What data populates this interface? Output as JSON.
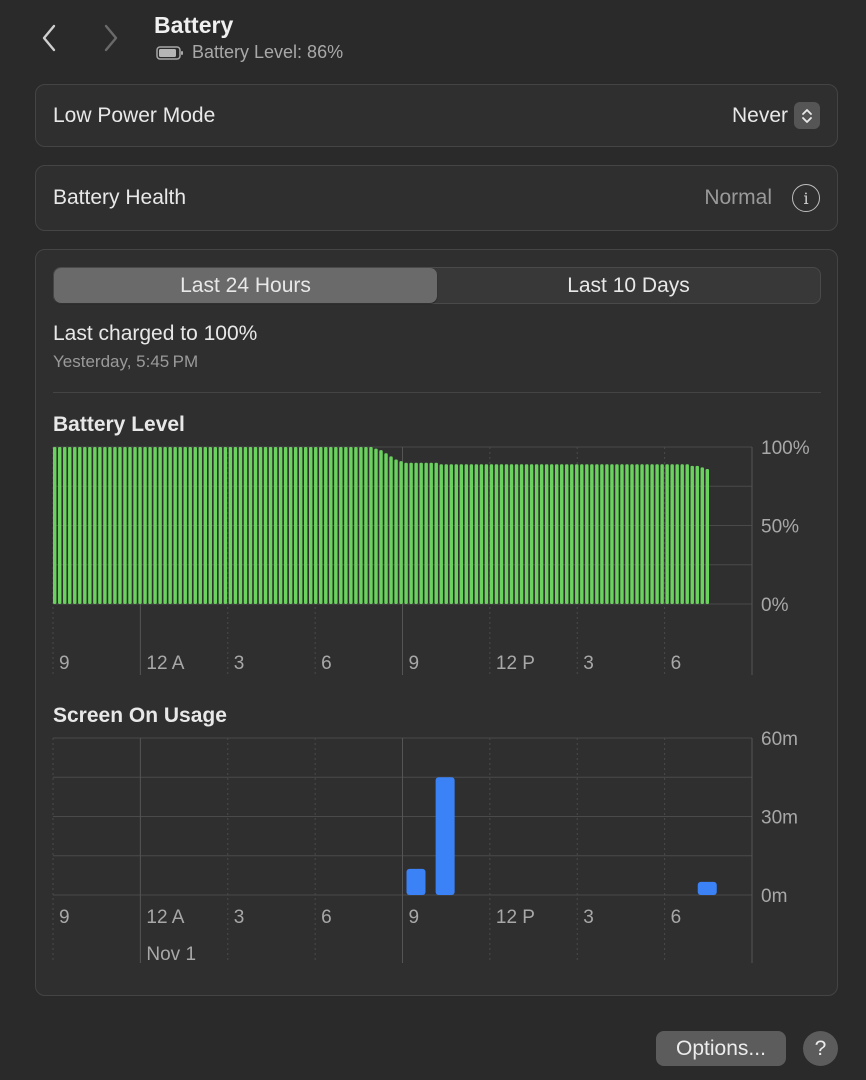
{
  "header": {
    "title": "Battery",
    "subtitle": "Battery Level: 86%",
    "back_icon": "chevron-left-icon",
    "forward_icon": "chevron-right-icon"
  },
  "low_power": {
    "label": "Low Power Mode",
    "value": "Never"
  },
  "health": {
    "label": "Battery Health",
    "value": "Normal"
  },
  "tabs": [
    {
      "label": "Last 24 Hours",
      "active": true
    },
    {
      "label": "Last 10 Days",
      "active": false
    }
  ],
  "last_charged": {
    "title": "Last charged to 100%",
    "time": "Yesterday, 5:45 PM"
  },
  "footer": {
    "options_label": "Options...",
    "help_label": "?"
  },
  "colors": {
    "battery_bar": "#6ad35e",
    "usage_bar": "#3b82f6",
    "background": "#2a2a2a"
  },
  "chart_data": [
    {
      "type": "bar",
      "title": "Battery Level",
      "x_tick_labels": [
        "9",
        "12 A",
        "3",
        "6",
        "9",
        "12 P",
        "3",
        "6"
      ],
      "y_tick_labels": [
        "100%",
        "50%",
        "0%"
      ],
      "ylim": [
        0,
        100
      ],
      "grid": true,
      "values": [
        100,
        100,
        100,
        100,
        100,
        100,
        100,
        100,
        100,
        100,
        100,
        100,
        100,
        100,
        100,
        100,
        100,
        100,
        100,
        100,
        100,
        100,
        100,
        100,
        100,
        100,
        100,
        100,
        100,
        100,
        100,
        100,
        100,
        100,
        100,
        100,
        100,
        100,
        100,
        100,
        100,
        100,
        100,
        100,
        100,
        100,
        100,
        100,
        100,
        100,
        100,
        100,
        100,
        100,
        100,
        100,
        100,
        100,
        100,
        100,
        100,
        100,
        100,
        100,
        99,
        98,
        96,
        94,
        92,
        91,
        90,
        90,
        90,
        90,
        90,
        90,
        90,
        89,
        89,
        89,
        89,
        89,
        89,
        89,
        89,
        89,
        89,
        89,
        89,
        89,
        89,
        89,
        89,
        89,
        89,
        89,
        89,
        89,
        89,
        89,
        89,
        89,
        89,
        89,
        89,
        89,
        89,
        89,
        89,
        89,
        89,
        89,
        89,
        89,
        89,
        89,
        89,
        89,
        89,
        89,
        89,
        89,
        89,
        89,
        89,
        89,
        89,
        88,
        88,
        87,
        86
      ]
    },
    {
      "type": "bar",
      "title": "Screen On Usage",
      "x_tick_labels": [
        "9",
        "12 A",
        "3",
        "6",
        "9",
        "12 P",
        "3",
        "6"
      ],
      "date_label": "Nov 1",
      "y_tick_labels": [
        "60m",
        "30m",
        "0m"
      ],
      "ylim": [
        0,
        60
      ],
      "grid": true,
      "bars": [
        {
          "hour_index": 12,
          "value": 10
        },
        {
          "hour_index": 13,
          "value": 45
        },
        {
          "hour_index": 22,
          "value": 5
        }
      ]
    }
  ]
}
